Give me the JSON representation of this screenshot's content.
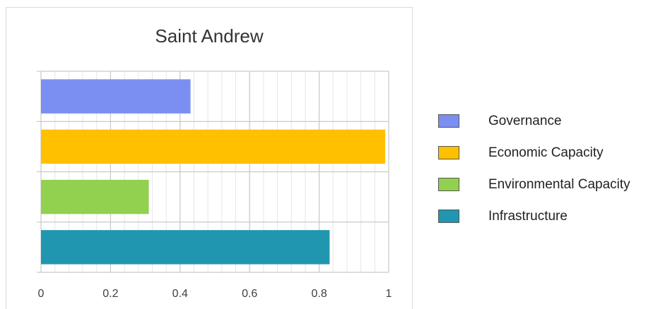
{
  "chart_data": {
    "type": "bar",
    "orientation": "horizontal",
    "title": "Saint Andrew",
    "categories": [
      "Governance",
      "Economic Capacity",
      "Environmental Capacity",
      "Infrastructure"
    ],
    "values": [
      0.43,
      0.99,
      0.31,
      0.83
    ],
    "colors": [
      "#7b8ff2",
      "#ffc000",
      "#92d050",
      "#2196b0"
    ],
    "xlim": [
      0,
      1
    ],
    "xticks": [
      "0",
      "0.2",
      "0.4",
      "0.6",
      "0.8",
      "1"
    ],
    "grid": true,
    "legend": {
      "position": "right",
      "entries": [
        "Governance",
        "Economic Capacity",
        "Environmental Capacity",
        "Infrastructure"
      ]
    }
  }
}
